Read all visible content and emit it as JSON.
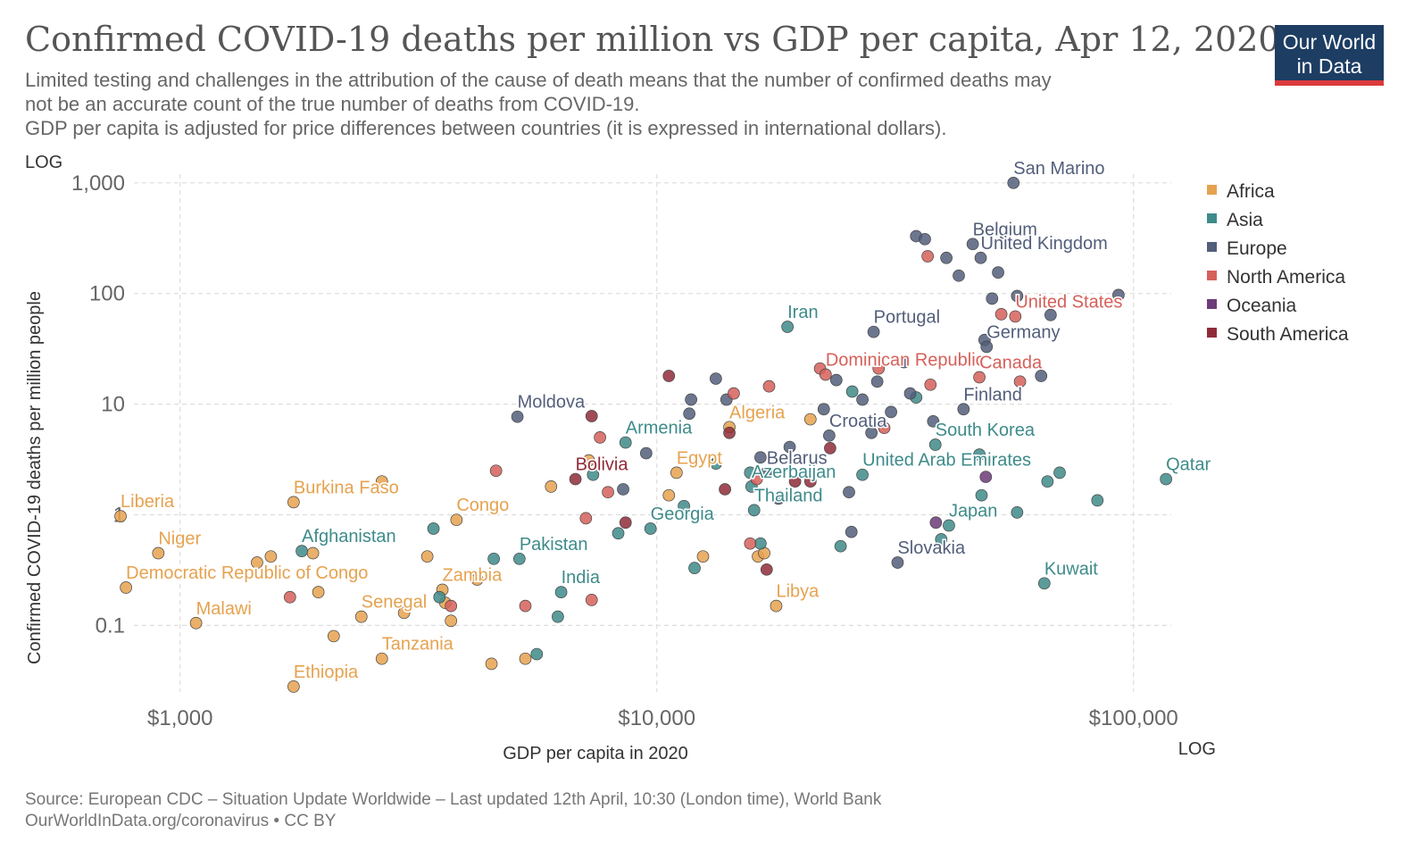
{
  "title": "Confirmed COVID-19 deaths per million vs GDP per capita, Apr 12, 2020",
  "subtitle_lines": [
    "Limited testing and challenges in the attribution of the cause of death means that the number of confirmed deaths may",
    "not be an accurate count of the true number of deaths from COVID-19.",
    "GDP per capita is adjusted for price differences between countries (it is expressed in international dollars)."
  ],
  "logo": {
    "line1": "Our World",
    "line2": "in Data"
  },
  "footer": {
    "source": "Source: European CDC – Situation Update Worldwide – Last updated 12th April, 10:30 (London time), World Bank",
    "link": "OurWorldInData.org/coronavirus • CC BY"
  },
  "chart_data": {
    "type": "scatter",
    "xlabel": "GDP per capita in 2020",
    "ylabel": "Confirmed COVID-19 deaths per million people",
    "x_scale": "log",
    "y_scale": "log",
    "x_scale_label": "LOG",
    "y_scale_label": "LOG",
    "xlim": [
      800,
      120000
    ],
    "ylim": [
      0.025,
      1200
    ],
    "x_ticks": [
      {
        "value": 1000,
        "label": "$1,000"
      },
      {
        "value": 10000,
        "label": "$10,000"
      },
      {
        "value": 100000,
        "label": "$100,000"
      }
    ],
    "y_ticks": [
      {
        "value": 0.1,
        "label": "0.1"
      },
      {
        "value": 1,
        "label": "1"
      },
      {
        "value": 10,
        "label": "10"
      },
      {
        "value": 100,
        "label": "100"
      },
      {
        "value": 1000,
        "label": "1,000"
      }
    ],
    "grid": true,
    "legend_position": "right",
    "colors": {
      "Africa": "#e6a24f",
      "Asia": "#3e8b8a",
      "Europe": "#525e7a",
      "North America": "#d6605a",
      "Oceania": "#6c3b78",
      "South America": "#8f2b38"
    },
    "series": [
      {
        "name": "Africa",
        "points": [
          [
            750,
            0.97,
            "Liberia"
          ],
          [
            900,
            0.45,
            "Niger"
          ],
          [
            770,
            0.22,
            "Democratic Republic of Congo"
          ],
          [
            1080,
            0.105,
            "Malawi"
          ],
          [
            1730,
            1.3,
            "Burkina Faso"
          ],
          [
            1730,
            0.028,
            "Ethiopia"
          ],
          [
            1900,
            0.45
          ],
          [
            1550,
            0.42
          ],
          [
            1450,
            0.37
          ],
          [
            1950,
            0.2
          ],
          [
            2100,
            0.08
          ],
          [
            2400,
            0.12,
            "Senegal"
          ],
          [
            2650,
            0.05,
            "Tanzania"
          ],
          [
            2650,
            2.0
          ],
          [
            2950,
            0.13
          ],
          [
            3300,
            0.42
          ],
          [
            3600,
            0.16
          ],
          [
            3700,
            0.11
          ],
          [
            3550,
            0.21,
            "Zambia"
          ],
          [
            4200,
            0.26
          ],
          [
            4500,
            0.045
          ],
          [
            3800,
            0.9,
            "Congo"
          ],
          [
            5300,
            0.05
          ],
          [
            6000,
            1.8
          ],
          [
            7200,
            3.1
          ],
          [
            10600,
            1.5
          ],
          [
            11000,
            2.4,
            "Egypt"
          ],
          [
            12500,
            0.42
          ],
          [
            14200,
            6.2,
            "Algeria"
          ],
          [
            16300,
            0.42
          ],
          [
            16800,
            0.45
          ],
          [
            17800,
            0.15,
            "Libya"
          ],
          [
            21000,
            7.3
          ]
        ]
      },
      {
        "name": "Asia",
        "points": [
          [
            1800,
            0.47,
            "Afghanistan"
          ],
          [
            3400,
            0.75
          ],
          [
            3500,
            0.18
          ],
          [
            4550,
            0.4
          ],
          [
            5150,
            0.4,
            "Pakistan"
          ],
          [
            5600,
            0.055
          ],
          [
            6300,
            0.2,
            "India"
          ],
          [
            6200,
            0.12
          ],
          [
            7350,
            2.3
          ],
          [
            8300,
            0.68
          ],
          [
            8600,
            4.5,
            "Armenia"
          ],
          [
            9700,
            0.75,
            "Georgia"
          ],
          [
            11400,
            1.2
          ],
          [
            12000,
            0.33
          ],
          [
            13300,
            2.9
          ],
          [
            15700,
            2.4
          ],
          [
            15800,
            1.8,
            "Azerbaijan"
          ],
          [
            16000,
            1.1,
            "Thailand"
          ],
          [
            16500,
            0.55
          ],
          [
            18800,
            50,
            "Iran"
          ],
          [
            24300,
            0.52
          ],
          [
            25700,
            13
          ],
          [
            27000,
            2.3,
            "United Arab Emirates"
          ],
          [
            35000,
            11.5
          ],
          [
            38400,
            4.3,
            "South Korea"
          ],
          [
            39500,
            0.6
          ],
          [
            41000,
            0.8,
            "Japan"
          ],
          [
            47500,
            3.5
          ],
          [
            48000,
            1.5
          ],
          [
            57000,
            1.05
          ],
          [
            65000,
            0.24,
            "Kuwait"
          ],
          [
            66000,
            2.0
          ],
          [
            70000,
            2.4
          ],
          [
            84000,
            1.35
          ],
          [
            117000,
            2.1,
            "Qatar"
          ]
        ]
      },
      {
        "name": "Europe",
        "points": [
          [
            5100,
            7.7,
            "Moldova"
          ],
          [
            8500,
            1.7
          ],
          [
            9500,
            3.6
          ],
          [
            11800,
            11
          ],
          [
            11700,
            8.2
          ],
          [
            13300,
            17
          ],
          [
            14000,
            11
          ],
          [
            18000,
            1.4
          ],
          [
            16500,
            3.3
          ],
          [
            17000,
            2.4,
            "Belarus"
          ],
          [
            19000,
            4.1
          ],
          [
            22400,
            9
          ],
          [
            23000,
            5.2,
            "Croatia"
          ],
          [
            25300,
            1.6
          ],
          [
            23800,
            16.5
          ],
          [
            25600,
            0.7
          ],
          [
            27000,
            11
          ],
          [
            28200,
            5.5
          ],
          [
            28500,
            45,
            "Portugal"
          ],
          [
            29000,
            16
          ],
          [
            31000,
            8.5
          ],
          [
            32000,
            0.37,
            "Slovakia"
          ],
          [
            33000,
            24
          ],
          [
            34000,
            12.5
          ],
          [
            35000,
            330
          ],
          [
            36500,
            310
          ],
          [
            38000,
            7
          ],
          [
            40500,
            210
          ],
          [
            43000,
            145
          ],
          [
            44000,
            9,
            "Finland"
          ],
          [
            46000,
            280,
            "Belgium"
          ],
          [
            47800,
            210,
            "United Kingdom"
          ],
          [
            48700,
            38
          ],
          [
            49200,
            33,
            "Germany"
          ],
          [
            50500,
            90
          ],
          [
            52000,
            155
          ],
          [
            56000,
            1000,
            "San Marino"
          ],
          [
            57000,
            95
          ],
          [
            64000,
            18
          ],
          [
            67000,
            64
          ],
          [
            93000,
            97
          ]
        ]
      },
      {
        "name": "North America",
        "points": [
          [
            1700,
            0.18
          ],
          [
            3700,
            0.15
          ],
          [
            4600,
            2.5
          ],
          [
            5300,
            0.15
          ],
          [
            7100,
            0.93
          ],
          [
            7300,
            0.17
          ],
          [
            7600,
            5
          ],
          [
            7900,
            1.6
          ],
          [
            14500,
            12.5
          ],
          [
            15700,
            0.55
          ],
          [
            16200,
            2.1
          ],
          [
            17200,
            14.5
          ],
          [
            22000,
            21
          ],
          [
            22600,
            18.5,
            "Dominican Republic"
          ],
          [
            29200,
            21
          ],
          [
            30000,
            6.1
          ],
          [
            37000,
            217
          ],
          [
            37500,
            15
          ],
          [
            47500,
            17.5,
            "Canada"
          ],
          [
            52800,
            65
          ],
          [
            56500,
            62,
            "United States"
          ],
          [
            57800,
            16
          ]
        ]
      },
      {
        "name": "Oceania",
        "points": [
          [
            38500,
            0.85
          ],
          [
            49000,
            2.2
          ]
        ]
      },
      {
        "name": "South America",
        "points": [
          [
            6750,
            2.1,
            "Bolivia"
          ],
          [
            7300,
            7.8
          ],
          [
            8600,
            0.85
          ],
          [
            10600,
            18
          ],
          [
            13900,
            1.7
          ],
          [
            14200,
            5.5
          ],
          [
            17000,
            0.32
          ],
          [
            19500,
            2.0
          ],
          [
            21000,
            2.0
          ],
          [
            23100,
            4.0
          ]
        ]
      }
    ]
  }
}
